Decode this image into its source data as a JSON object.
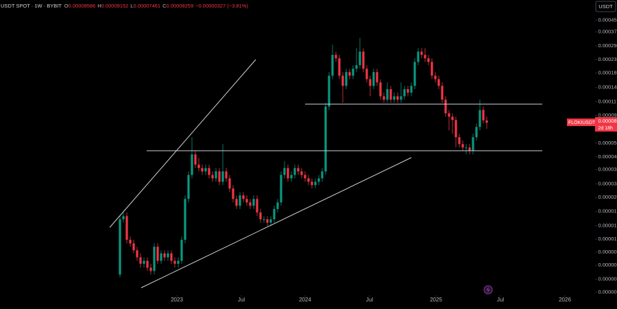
{
  "chart_data": {
    "type": "candlestick",
    "symbol_info": "USDT SPOT · 1W · BYBIT",
    "ohlc_labels": [
      "O",
      "H",
      "L",
      "C"
    ],
    "change_label": "−0.00000327 (−3.81%)",
    "symbol_label": "FLOKIUSDT",
    "countdown": "2d 18h",
    "currency": "USDT",
    "log_scale": true,
    "grid": false,
    "up_color": "#089981",
    "down_color": "#f23645",
    "ylim": [
      4.8e-06,
      0.00063
    ],
    "yticks": [
      0.000452,
      0.000371,
      0.000294,
      0.000235,
      0.000188,
      0.000148,
      0.000117,
      9.3e-05,
      7.5e-05,
      5.9e-05,
      4.7e-05,
      3.8e-05,
      3e-05,
      2.4e-05,
      1.9e-05,
      1.5e-05,
      1.2e-05,
      9.7e-06,
      7.8e-06,
      6.2e-06,
      5e-06
    ],
    "xlim": [
      -35,
      138.6
    ],
    "xticks": [
      {
        "value": 16.6,
        "label": "2023"
      },
      {
        "value": 35.4,
        "label": "Jul"
      },
      {
        "value": 54,
        "label": "2024"
      },
      {
        "value": 72.8,
        "label": "Jul"
      },
      {
        "value": 92.2,
        "label": "2025"
      },
      {
        "value": 111,
        "label": "Jul"
      },
      {
        "value": 129.8,
        "label": "2026"
      }
    ],
    "open": [
      6.7e-06,
      1.67e-05,
      1.76e-05,
      1.19e-05,
      1.12e-05,
      1e-05,
      8.9e-06,
      8e-06,
      8.4e-06,
      7.5e-06,
      7.1e-06,
      1.06e-05,
      8.4e-06,
      9.5e-06,
      8.9e-06,
      9.5e-06,
      8.4e-06,
      8e-06,
      8.4e-06,
      1.19e-05,
      2.34e-05,
      3.48e-05,
      4.89e-05,
      4.13e-05,
      3.9e-05,
      3.69e-05,
      3.9e-05,
      3.48e-05,
      3.29e-05,
      3.69e-05,
      3.11e-05,
      3.69e-05,
      3.29e-05,
      2.78e-05,
      2.34e-05,
      2.09e-05,
      2.48e-05,
      2.34e-05,
      2.21e-05,
      2.09e-05,
      2.34e-05,
      1.87e-05,
      1.67e-05,
      1.67e-05,
      1.58e-05,
      1.67e-05,
      1.98e-05,
      2.21e-05,
      3.48e-05,
      3.9e-05,
      3.29e-05,
      3.48e-05,
      3.9e-05,
      3.69e-05,
      3.48e-05,
      3.29e-05,
      3.11e-05,
      2.94e-05,
      3.11e-05,
      3.29e-05,
      3.69e-05,
      0.000108,
      0.00018,
      0.000254,
      0.00024,
      0.00018,
      0.000152,
      0.000191,
      0.00018,
      0.000202,
      0.000214,
      0.000268,
      0.000202,
      0.00017,
      0.000152,
      0.000191,
      0.000161,
      0.000128,
      0.000121,
      0.000144,
      0.000121,
      0.000128,
      0.000121,
      0.000128,
      0.000144,
      0.000136,
      0.000152,
      0.000226,
      0.000268,
      0.000254,
      0.00024,
      0.000226,
      0.00018,
      0.00017,
      0.000152,
      0.000121,
      9.66e-05,
      9.13e-05,
      8.63e-05,
      6.5e-05,
      5.8e-05,
      5.48e-05,
      5.48e-05,
      5.18e-05,
      6.5e-05,
      7.7e-05,
      0.000102,
      8.586e-05
    ],
    "high": [
      1.76e-05,
      1.87e-05,
      1.87e-05,
      1.26e-05,
      1.19e-05,
      1.06e-05,
      9.5e-06,
      8.9e-06,
      8.9e-06,
      8e-06,
      1.12e-05,
      1.12e-05,
      1e-05,
      1e-05,
      1e-05,
      1e-05,
      8.9e-06,
      8.9e-06,
      1.26e-05,
      2.48e-05,
      3.69e-05,
      6.5e-05,
      5.18e-05,
      4.62e-05,
      4.13e-05,
      4.13e-05,
      4.13e-05,
      3.69e-05,
      3.9e-05,
      3.9e-05,
      5.8e-05,
      3.9e-05,
      3.48e-05,
      2.94e-05,
      2.48e-05,
      2.62e-05,
      2.62e-05,
      2.48e-05,
      2.34e-05,
      2.48e-05,
      2.48e-05,
      1.98e-05,
      1.76e-05,
      1.76e-05,
      1.76e-05,
      2.09e-05,
      2.34e-05,
      3.69e-05,
      4.37e-05,
      4.13e-05,
      3.69e-05,
      4.13e-05,
      4.13e-05,
      3.9e-05,
      3.69e-05,
      3.48e-05,
      3.29e-05,
      3.29e-05,
      3.48e-05,
      3.9e-05,
      0.000115,
      0.000191,
      0.000301,
      0.000268,
      0.000254,
      0.000191,
      0.000202,
      0.000202,
      0.000214,
      0.000284,
      0.000337,
      0.000284,
      0.000214,
      0.00018,
      0.000202,
      0.000202,
      0.00017,
      0.000136,
      0.000161,
      0.000152,
      0.000136,
      0.000136,
      0.000161,
      0.000152,
      0.000152,
      0.000161,
      0.00024,
      0.000284,
      0.000284,
      0.000284,
      0.000254,
      0.00024,
      0.000191,
      0.00018,
      0.000161,
      0.000128,
      0.000102,
      9.66e-05,
      9.13e-05,
      6.88e-05,
      6.14e-05,
      5.8e-05,
      5.8e-05,
      6.88e-05,
      8.15e-05,
      0.000121,
      0.000108,
      9.152e-05
    ],
    "low": [
      6.4e-06,
      1.58e-05,
      1.12e-05,
      1.06e-05,
      9.5e-06,
      8.4e-06,
      7.5e-06,
      7.5e-06,
      7.1e-06,
      6.7e-06,
      6.7e-06,
      8e-06,
      8e-06,
      8.4e-06,
      8.4e-06,
      8e-06,
      7.5e-06,
      7.5e-06,
      8e-06,
      1.12e-05,
      2.21e-05,
      3.29e-05,
      3.9e-05,
      3.69e-05,
      3.48e-05,
      3.48e-05,
      3.29e-05,
      3.11e-05,
      3.11e-05,
      2.94e-05,
      2.94e-05,
      3.11e-05,
      2.62e-05,
      2.21e-05,
      1.98e-05,
      1.98e-05,
      2.21e-05,
      2.09e-05,
      1.98e-05,
      1.98e-05,
      1.76e-05,
      1.58e-05,
      1.58e-05,
      1.49e-05,
      1.49e-05,
      1.58e-05,
      1.87e-05,
      2.09e-05,
      3.29e-05,
      3.11e-05,
      3.11e-05,
      3.29e-05,
      3.48e-05,
      3.29e-05,
      3.11e-05,
      2.94e-05,
      2.78e-05,
      2.78e-05,
      2.94e-05,
      3.11e-05,
      3.48e-05,
      0.000102,
      0.00017,
      0.000226,
      0.00017,
      0.000115,
      0.000144,
      0.00017,
      0.00017,
      0.000191,
      0.000202,
      0.000191,
      0.000161,
      0.000128,
      0.000144,
      0.000152,
      0.000121,
      0.000115,
      0.000115,
      0.000115,
      0.000115,
      0.000115,
      0.000115,
      0.000121,
      0.000128,
      0.000128,
      0.000144,
      0.000214,
      0.00024,
      0.000226,
      0.000214,
      0.00017,
      0.000161,
      0.000144,
      0.000115,
      9.13e-05,
      7.28e-05,
      6.88e-05,
      5.48e-05,
      5.48e-05,
      5.18e-05,
      4.89e-05,
      4.89e-05,
      4.89e-05,
      6.14e-05,
      7.28e-05,
      8.15e-05,
      7.461e-05
    ],
    "close": [
      1.67e-05,
      1.76e-05,
      1.19e-05,
      1.12e-05,
      1e-05,
      8.9e-06,
      8e-06,
      8.4e-06,
      7.5e-06,
      7.1e-06,
      1.06e-05,
      8.4e-06,
      9.5e-06,
      8.9e-06,
      9.5e-06,
      8.4e-06,
      8e-06,
      8.4e-06,
      1.19e-05,
      2.34e-05,
      3.48e-05,
      4.89e-05,
      4.13e-05,
      3.9e-05,
      3.69e-05,
      3.9e-05,
      3.48e-05,
      3.29e-05,
      3.69e-05,
      3.11e-05,
      3.69e-05,
      3.29e-05,
      2.78e-05,
      2.34e-05,
      2.09e-05,
      2.48e-05,
      2.34e-05,
      2.21e-05,
      2.09e-05,
      2.34e-05,
      1.87e-05,
      1.67e-05,
      1.67e-05,
      1.58e-05,
      1.67e-05,
      1.98e-05,
      2.21e-05,
      3.48e-05,
      3.9e-05,
      3.29e-05,
      3.48e-05,
      3.9e-05,
      3.69e-05,
      3.48e-05,
      3.29e-05,
      3.11e-05,
      2.94e-05,
      3.11e-05,
      3.29e-05,
      3.69e-05,
      0.000108,
      0.00018,
      0.000254,
      0.00024,
      0.00018,
      0.000152,
      0.000191,
      0.00018,
      0.000202,
      0.000214,
      0.000268,
      0.000202,
      0.00017,
      0.000152,
      0.000191,
      0.000161,
      0.000128,
      0.000121,
      0.000144,
      0.000121,
      0.000128,
      0.000121,
      0.000128,
      0.000144,
      0.000136,
      0.000152,
      0.000226,
      0.000268,
      0.000254,
      0.00024,
      0.000226,
      0.00018,
      0.00017,
      0.000152,
      0.000121,
      9.66e-05,
      9.13e-05,
      8.63e-05,
      6.5e-05,
      5.8e-05,
      5.48e-05,
      5.48e-05,
      5.18e-05,
      6.5e-05,
      7.7e-05,
      0.000102,
      8.586e-05,
      8.259e-05
    ]
  }
}
